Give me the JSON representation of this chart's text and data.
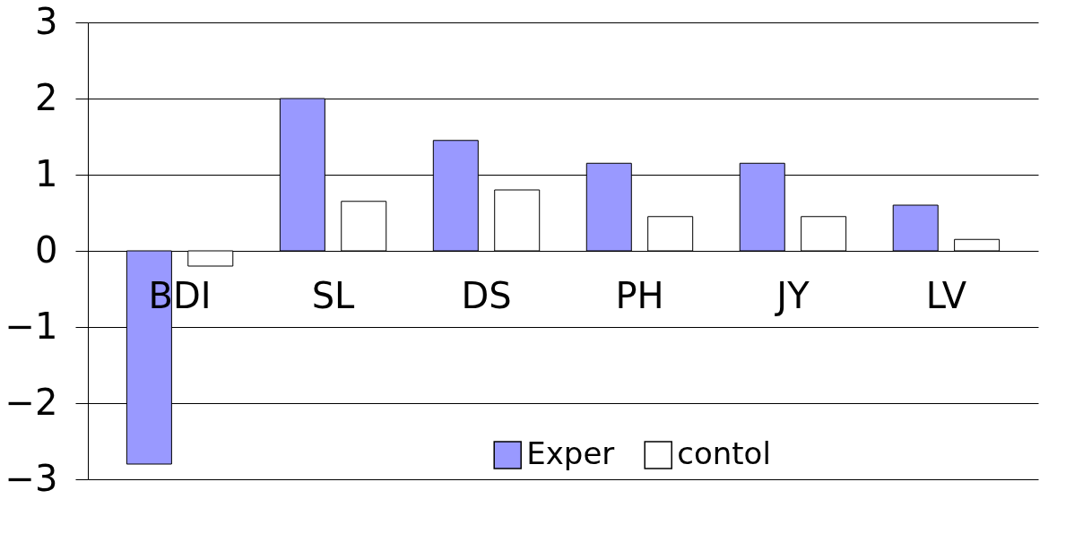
{
  "chart_data": {
    "type": "bar",
    "categories": [
      "BDI",
      "SL",
      "DS",
      "PH",
      "JY",
      "LV"
    ],
    "series": [
      {
        "name": "Exper",
        "color": "#9999ff",
        "values": [
          -2.8,
          2.0,
          1.45,
          1.15,
          1.15,
          0.6
        ]
      },
      {
        "name": "contol",
        "color": "#ffffff",
        "values": [
          -0.2,
          0.65,
          0.8,
          0.45,
          0.45,
          0.15
        ]
      }
    ],
    "ylim": [
      -3,
      3
    ],
    "yticks": [
      -3,
      -2,
      -1,
      0,
      1,
      2,
      3
    ],
    "grid": "y",
    "legend": "bottom"
  }
}
